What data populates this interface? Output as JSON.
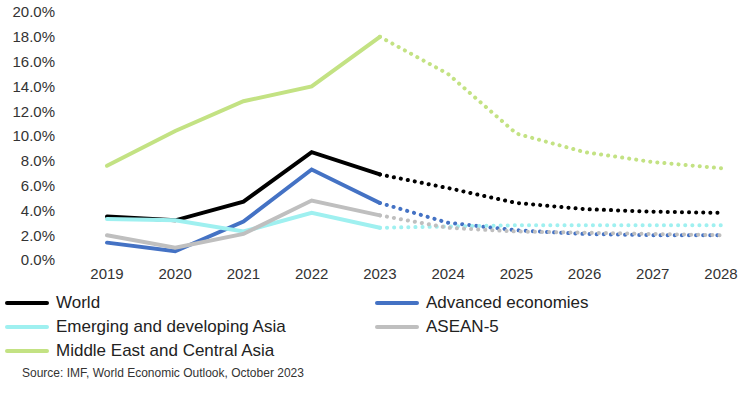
{
  "chart_data": {
    "type": "line",
    "note": "Source: IMF, World Economic Outlook, October 2023",
    "categories": [
      "2019",
      "2020",
      "2021",
      "2022",
      "2023",
      "2024",
      "2025",
      "2026",
      "2027",
      "2028"
    ],
    "ylim": [
      0,
      20
    ],
    "yticks": [
      {
        "value": 0,
        "label": "0.0%"
      },
      {
        "value": 2,
        "label": "2.0%"
      },
      {
        "value": 4,
        "label": "4.0%"
      },
      {
        "value": 6,
        "label": "6.0%"
      },
      {
        "value": 8,
        "label": "8.0%"
      },
      {
        "value": 10,
        "label": "10.0%"
      },
      {
        "value": 12,
        "label": "12.0%"
      },
      {
        "value": 14,
        "label": "14.0%"
      },
      {
        "value": 16,
        "label": "16.0%"
      },
      {
        "value": 18,
        "label": "18.0%"
      },
      {
        "value": 20,
        "label": "20.0%"
      }
    ],
    "grid": false,
    "legend": "bottom",
    "series": [
      {
        "name": "World",
        "color": "#000000",
        "line_style": "solid",
        "marker": "none",
        "values": [
          3.5,
          3.2,
          4.7,
          8.7,
          6.9,
          null,
          null,
          null,
          null,
          null
        ]
      },
      {
        "name": "Advanced economies",
        "color": "#4472c4",
        "line_style": "solid",
        "marker": "none",
        "values": [
          1.4,
          0.7,
          3.1,
          7.3,
          4.6,
          null,
          null,
          null,
          null,
          null
        ]
      },
      {
        "name": "Emerging and developing Asia",
        "color": "#9ff0f0",
        "line_style": "solid",
        "marker": "none",
        "values": [
          3.3,
          3.2,
          2.3,
          3.8,
          2.6,
          null,
          null,
          null,
          null,
          null
        ]
      },
      {
        "name": "ASEAN-5",
        "color": "#bfbfbf",
        "line_style": "solid",
        "marker": "none",
        "values": [
          2.0,
          1.0,
          2.1,
          4.8,
          3.6,
          null,
          null,
          null,
          null,
          null
        ]
      },
      {
        "name": "Middle East and Central Asia",
        "color": "#c3e283",
        "line_style": "solid",
        "marker": "none",
        "values": [
          7.6,
          10.4,
          12.8,
          14.0,
          18.0,
          null,
          null,
          null,
          null,
          null
        ]
      },
      {
        "name": "World",
        "color": "#000000",
        "line_style": "dotted",
        "marker": "none",
        "values": [
          null,
          null,
          null,
          null,
          6.9,
          5.8,
          4.6,
          4.1,
          3.9,
          3.8
        ]
      },
      {
        "name": "Advanced economies",
        "color": "#4472c4",
        "line_style": "dotted",
        "marker": "none",
        "values": [
          null,
          null,
          null,
          null,
          4.6,
          3.0,
          2.4,
          2.1,
          2.0,
          2.0
        ]
      },
      {
        "name": "Emerging and developing Asia",
        "color": "#9ff0f0",
        "line_style": "dotted",
        "marker": "none",
        "values": [
          null,
          null,
          null,
          null,
          2.6,
          2.7,
          2.8,
          2.8,
          2.8,
          2.8
        ]
      },
      {
        "name": "ASEAN-5",
        "color": "#bfbfbf",
        "line_style": "dotted",
        "marker": "none",
        "values": [
          null,
          null,
          null,
          null,
          3.6,
          2.6,
          2.3,
          2.2,
          2.1,
          2.0
        ]
      },
      {
        "name": "Middle East and Central Asia",
        "color": "#c3e283",
        "line_style": "dotted",
        "marker": "none",
        "values": [
          null,
          null,
          null,
          null,
          18.0,
          15.0,
          10.2,
          8.7,
          7.9,
          7.4
        ]
      }
    ]
  }
}
